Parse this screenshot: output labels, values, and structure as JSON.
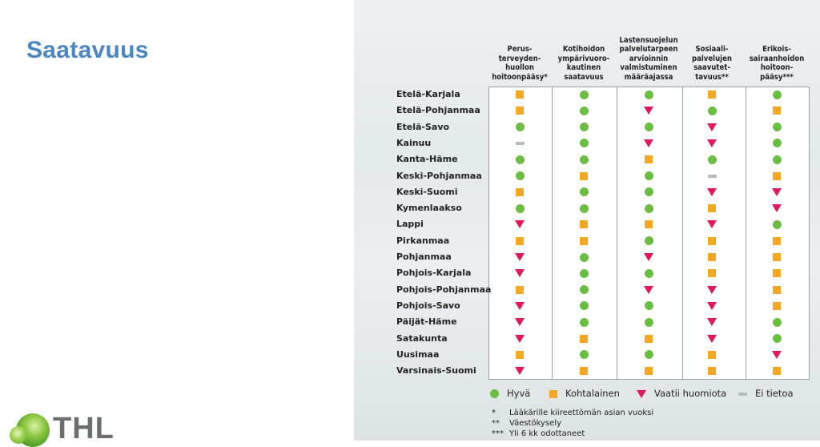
{
  "slide": {
    "title": "Saatavuus"
  },
  "logo": {
    "text": "THL"
  },
  "table": {
    "columns": [
      "Perus-\nterveyden-\nhuollon\nhoitoonpääsy*",
      "Kotihoidon\nympärivuoro-\nkautinen\nsaatavuus",
      "Lastensuojelun\npalvelutarpeen\narvioinnin\nvalmistuminen\nmääräajassa",
      "Sosiaali-\npalvelujen\nsaavutet-\ntavuus**",
      "Erikois-\nsairaanhoidon\nhoitoon-\npääsy***"
    ],
    "rows": [
      {
        "region": "Etelä-Karjala",
        "values": [
          "kohtalainen",
          "hyva",
          "hyva",
          "kohtalainen",
          "hyva"
        ]
      },
      {
        "region": "Etelä-Pohjanmaa",
        "values": [
          "kohtalainen",
          "hyva",
          "vaatii",
          "hyva",
          "kohtalainen"
        ]
      },
      {
        "region": "Etelä-Savo",
        "values": [
          "hyva",
          "hyva",
          "hyva",
          "vaatii",
          "hyva"
        ]
      },
      {
        "region": "Kainuu",
        "values": [
          "ei",
          "hyva",
          "vaatii",
          "vaatii",
          "hyva"
        ]
      },
      {
        "region": "Kanta-Häme",
        "values": [
          "hyva",
          "hyva",
          "kohtalainen",
          "hyva",
          "hyva"
        ]
      },
      {
        "region": "Keski-Pohjanmaa",
        "values": [
          "hyva",
          "kohtalainen",
          "hyva",
          "ei",
          "kohtalainen"
        ]
      },
      {
        "region": "Keski-Suomi",
        "values": [
          "kohtalainen",
          "hyva",
          "hyva",
          "vaatii",
          "vaatii"
        ]
      },
      {
        "region": "Kymenlaakso",
        "values": [
          "hyva",
          "hyva",
          "hyva",
          "kohtalainen",
          "vaatii"
        ]
      },
      {
        "region": "Lappi",
        "values": [
          "vaatii",
          "kohtalainen",
          "kohtalainen",
          "vaatii",
          "hyva"
        ]
      },
      {
        "region": "Pirkanmaa",
        "values": [
          "kohtalainen",
          "kohtalainen",
          "hyva",
          "kohtalainen",
          "kohtalainen"
        ]
      },
      {
        "region": "Pohjanmaa",
        "values": [
          "vaatii",
          "hyva",
          "vaatii",
          "kohtalainen",
          "kohtalainen"
        ]
      },
      {
        "region": "Pohjois-Karjala",
        "values": [
          "vaatii",
          "hyva",
          "hyva",
          "kohtalainen",
          "kohtalainen"
        ]
      },
      {
        "region": "Pohjois-Pohjanmaa",
        "values": [
          "kohtalainen",
          "hyva",
          "vaatii",
          "vaatii",
          "kohtalainen"
        ]
      },
      {
        "region": "Pohjois-Savo",
        "values": [
          "vaatii",
          "hyva",
          "hyva",
          "vaatii",
          "kohtalainen"
        ]
      },
      {
        "region": "Päijät-Häme",
        "values": [
          "vaatii",
          "hyva",
          "hyva",
          "vaatii",
          "hyva"
        ]
      },
      {
        "region": "Satakunta",
        "values": [
          "vaatii",
          "kohtalainen",
          "kohtalainen",
          "vaatii",
          "hyva"
        ]
      },
      {
        "region": "Uusimaa",
        "values": [
          "kohtalainen",
          "hyva",
          "hyva",
          "kohtalainen",
          "vaatii"
        ]
      },
      {
        "region": "Varsinais-Suomi",
        "values": [
          "vaatii",
          "kohtalainen",
          "kohtalainen",
          "kohtalainen",
          "kohtalainen"
        ]
      }
    ]
  },
  "legend": [
    {
      "key": "hyva",
      "label": "Hyvä",
      "shape": "circle",
      "color": "#6abf43"
    },
    {
      "key": "kohtalainen",
      "label": "Kohtalainen",
      "shape": "square",
      "color": "#f7a823"
    },
    {
      "key": "vaatii",
      "label": "Vaatii huomiota",
      "shape": "triangle",
      "color": "#e0195a"
    },
    {
      "key": "ei",
      "label": "Ei tietoa",
      "shape": "dash",
      "color": "#b9bcbe"
    }
  ],
  "footnotes": [
    {
      "mark": "*",
      "text": "Lääkärille kiireettömän asian vuoksi"
    },
    {
      "mark": "**",
      "text": "Väestökysely"
    },
    {
      "mark": "***",
      "text": "Yli 6 kk odottaneet"
    }
  ]
}
